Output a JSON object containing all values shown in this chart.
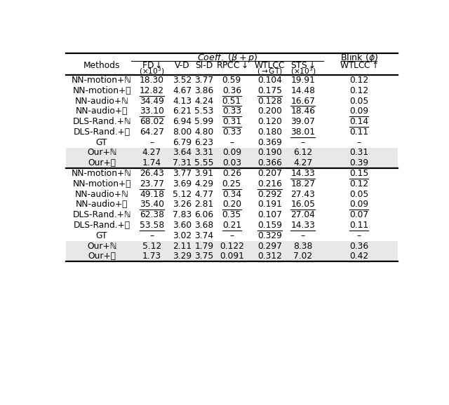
{
  "shade_color": "#e8e8e8",
  "bg_color": "#ffffff",
  "section1": [
    {
      "method": "NN-motion+ℕ",
      "fd": "18.30",
      "vd": "3.52",
      "sid": "3.77",
      "rpcc": "0.59",
      "wtlcc": "0.104",
      "sts": "19.91",
      "blink": "0.12",
      "ul": []
    },
    {
      "method": "NN-motion+핌",
      "fd": "12.82",
      "vd": "4.67",
      "sid": "3.86",
      "rpcc": "0.36",
      "wtlcc": "0.175",
      "sts": "14.48",
      "blink": "0.12",
      "ul": [
        "fd",
        "rpcc",
        "wtlcc"
      ]
    },
    {
      "method": "NN-audio+ℕ",
      "fd": "34.49",
      "vd": "4.13",
      "sid": "4.24",
      "rpcc": "0.51",
      "wtlcc": "0.128",
      "sts": "16.67",
      "blink": "0.05",
      "ul": [
        "rpcc",
        "sts"
      ]
    },
    {
      "method": "NN-audio+핌",
      "fd": "33.10",
      "vd": "6.21",
      "sid": "5.53",
      "rpcc": "0.33",
      "wtlcc": "0.200",
      "sts": "18.46",
      "blink": "0.09",
      "ul": [
        "fd",
        "rpcc",
        "blink"
      ]
    },
    {
      "method": "DLS-Rand.+ℕ",
      "fd": "68.02",
      "vd": "6.94",
      "sid": "5.99",
      "rpcc": "0.31",
      "wtlcc": "0.120",
      "sts": "39.07",
      "blink": "0.14",
      "ul": [
        "rpcc",
        "blink"
      ]
    },
    {
      "method": "DLS-Rand.+핌",
      "fd": "64.27",
      "vd": "8.00",
      "sid": "4.80",
      "rpcc": "0.33",
      "wtlcc": "0.180",
      "sts": "38.01",
      "blink": "0.11",
      "ul": [
        "sts"
      ]
    },
    {
      "method": "GT",
      "fd": "–",
      "vd": "6.79",
      "sid": "6.23",
      "rpcc": "–",
      "wtlcc": "0.369",
      "sts": "–",
      "blink": "–",
      "ul": []
    },
    {
      "method": "Our+ℕ",
      "fd": "4.27",
      "vd": "3.64",
      "sid": "3.31",
      "rpcc": "0.09",
      "wtlcc": "0.190",
      "sts": "6.12",
      "blink": "0.31",
      "ul": [],
      "shaded": true
    },
    {
      "method": "Our+핌",
      "fd": "1.74",
      "vd": "7.31",
      "sid": "5.55",
      "rpcc": "0.03",
      "wtlcc": "0.366",
      "sts": "4.27",
      "blink": "0.39",
      "ul": [
        "fd",
        "rpcc",
        "wtlcc",
        "sts",
        "blink"
      ],
      "shaded": true
    }
  ],
  "section2": [
    {
      "method": "NN-motion+ℕ",
      "fd": "26.43",
      "vd": "3.77",
      "sid": "3.91",
      "rpcc": "0.26",
      "wtlcc": "0.207",
      "sts": "14.33",
      "blink": "0.15",
      "ul": [
        "sts",
        "blink"
      ]
    },
    {
      "method": "NN-motion+핌",
      "fd": "23.77",
      "vd": "3.69",
      "sid": "4.29",
      "rpcc": "0.25",
      "wtlcc": "0.216",
      "sts": "18.27",
      "blink": "0.12",
      "ul": [
        "fd",
        "rpcc",
        "wtlcc"
      ]
    },
    {
      "method": "NN-audio+ℕ",
      "fd": "49.18",
      "vd": "5.12",
      "sid": "4.77",
      "rpcc": "0.34",
      "wtlcc": "0.292",
      "sts": "27.43",
      "blink": "0.05",
      "ul": []
    },
    {
      "method": "NN-audio+핌",
      "fd": "35.40",
      "vd": "3.26",
      "sid": "2.81",
      "rpcc": "0.20",
      "wtlcc": "0.191",
      "sts": "16.05",
      "blink": "0.09",
      "ul": [
        "fd",
        "rpcc",
        "sts",
        "blink"
      ]
    },
    {
      "method": "DLS-Rand.+ℕ",
      "fd": "62.38",
      "vd": "7.83",
      "sid": "6.06",
      "rpcc": "0.35",
      "wtlcc": "0.107",
      "sts": "27.04",
      "blink": "0.07",
      "ul": []
    },
    {
      "method": "DLS-Rand.+핌",
      "fd": "53.58",
      "vd": "3.60",
      "sid": "3.68",
      "rpcc": "0.21",
      "wtlcc": "0.159",
      "sts": "14.33",
      "blink": "0.11",
      "ul": [
        "fd",
        "rpcc",
        "wtlcc",
        "sts",
        "blink"
      ]
    },
    {
      "method": "GT",
      "fd": "–",
      "vd": "3.02",
      "sid": "3.74",
      "rpcc": "–",
      "wtlcc": "0.329",
      "sts": "–",
      "blink": "–",
      "ul": []
    },
    {
      "method": "Our+ℕ",
      "fd": "5.12",
      "vd": "2.11",
      "sid": "1.79",
      "rpcc": "0.122",
      "wtlcc": "0.297",
      "sts": "8.38",
      "blink": "0.36",
      "ul": [],
      "shaded": true
    },
    {
      "method": "Our+핌",
      "fd": "1.73",
      "vd": "3.29",
      "sid": "3.75",
      "rpcc": "0.091",
      "wtlcc": "0.312",
      "sts": "7.02",
      "blink": "0.42",
      "ul": [
        "fd",
        "rpcc",
        "wtlcc",
        "sts",
        "blink"
      ],
      "shaded": true
    }
  ]
}
